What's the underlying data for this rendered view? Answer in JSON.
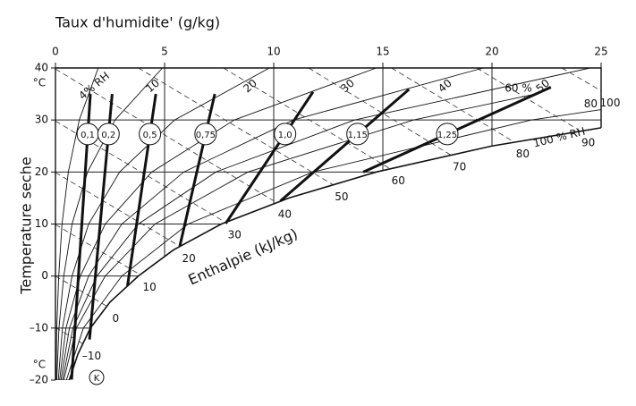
{
  "chart_data": {
    "type": "psychrometric",
    "xlabel": "Taux d'humidite' (g/kg)",
    "ylabel": "Temperature seche",
    "y_unit": "°C",
    "enthalpy_label": "Enthalpie (kJ/kg)",
    "point_label": "K",
    "xlim": [
      0,
      25
    ],
    "ylim": [
      -20,
      40
    ],
    "xticks": [
      0,
      5,
      10,
      15,
      20,
      25
    ],
    "yticks": [
      40,
      30,
      20,
      10,
      0,
      {
        "value": -10,
        "label": "–10"
      },
      {
        "value": -20,
        "label": "–20"
      }
    ],
    "grid": true,
    "rh_curves": [
      {
        "name": "4% RH",
        "x": [
          0.03,
          0.06,
          0.15,
          0.3,
          0.59,
          1.09,
          1.96
        ],
        "y": [
          -20,
          -10,
          0,
          10,
          20,
          30,
          40
        ]
      },
      {
        "name": "10",
        "x": [
          0.06,
          0.16,
          0.38,
          0.76,
          1.47,
          2.73,
          4.9
        ],
        "y": [
          -20,
          -10,
          0,
          10,
          20,
          30,
          40
        ]
      },
      {
        "name": "20",
        "x": [
          0.13,
          0.32,
          0.76,
          1.52,
          2.94,
          5.46,
          9.8
        ],
        "y": [
          -20,
          -10,
          0,
          10,
          20,
          30,
          40
        ]
      },
      {
        "name": "30",
        "x": [
          0.19,
          0.48,
          1.14,
          2.28,
          4.41,
          8.19,
          14.7
        ],
        "y": [
          -20,
          -10,
          0,
          10,
          20,
          30,
          40
        ]
      },
      {
        "name": "40",
        "x": [
          0.25,
          0.64,
          1.52,
          3.04,
          5.88,
          10.9,
          19.6
        ],
        "y": [
          -20,
          -10,
          0,
          10,
          20,
          30,
          40
        ]
      },
      {
        "name": "50",
        "x": [
          0.32,
          0.8,
          1.9,
          3.8,
          7.35,
          13.7,
          24.5
        ],
        "y": [
          -20,
          -10,
          0,
          10,
          20,
          30,
          40
        ]
      },
      {
        "name": "60 %",
        "x": [
          0.38,
          0.96,
          2.28,
          4.56,
          8.82,
          16.4,
          22
        ],
        "y": [
          -20,
          -10,
          0,
          10,
          20,
          30,
          35
        ]
      },
      {
        "name": "80",
        "x": [
          0.5,
          1.28,
          3.04,
          6.08,
          11.8,
          21.8,
          25
        ],
        "y": [
          -20,
          -10,
          0,
          10,
          20,
          30,
          32
        ]
      },
      {
        "name": "100 % RH",
        "x": [
          0.63,
          1.03,
          1.6,
          2.5,
          3.8,
          5.4,
          7.6,
          10.7,
          14.7,
          20,
          25
        ],
        "y": [
          -20,
          -15,
          -10,
          -5,
          0,
          5,
          10,
          15,
          20,
          25,
          28.5
        ]
      }
    ],
    "enthalpy_lines": [
      {
        "value": -10,
        "label": "–10",
        "x": [
          0,
          1.25
        ],
        "y": [
          -9.9,
          -13
        ]
      },
      {
        "value": 0,
        "x": [
          0,
          2.35
        ],
        "y": [
          0,
          -5.8
        ]
      },
      {
        "value": 10,
        "x": [
          0,
          3.9
        ],
        "y": [
          9.9,
          0.2
        ]
      },
      {
        "value": 20,
        "x": [
          0,
          5.7
        ],
        "y": [
          19.9,
          5.7
        ]
      },
      {
        "value": 30,
        "x": [
          0,
          7.8
        ],
        "y": [
          29.8,
          10.3
        ]
      },
      {
        "value": 40,
        "x": [
          0,
          10.1
        ],
        "y": [
          39.8,
          14.2
        ]
      },
      {
        "value": 50,
        "x": [
          3.8,
          12.7
        ],
        "y": [
          40,
          17.6
        ]
      },
      {
        "value": 60,
        "x": [
          7.7,
          15.3
        ],
        "y": [
          40,
          20.7
        ]
      },
      {
        "value": 70,
        "x": [
          11.6,
          18.1
        ],
        "y": [
          40,
          23.3
        ]
      },
      {
        "value": 80,
        "x": [
          15.4,
          21
        ],
        "y": [
          40,
          25.8
        ]
      },
      {
        "value": 90,
        "x": [
          19.3,
          24
        ],
        "y": [
          40,
          28
        ]
      },
      {
        "value": 100,
        "x": [
          23.2,
          25
        ],
        "y": [
          40,
          35.6
        ]
      }
    ],
    "scale_lines": [
      {
        "label": "0,1",
        "x": [
          0.74,
          1.6
        ],
        "y": [
          -19.9,
          35
        ]
      },
      {
        "label": "0,2",
        "x": [
          1.56,
          2.6
        ],
        "y": [
          -12.2,
          35
        ]
      },
      {
        "label": "0,5",
        "x": [
          3.3,
          4.6
        ],
        "y": [
          -1.9,
          35
        ]
      },
      {
        "label": "0,75",
        "x": [
          5.7,
          7.3
        ],
        "y": [
          5.8,
          35
        ]
      },
      {
        "label": "1,0",
        "x": [
          7.8,
          11.8
        ],
        "y": [
          10.1,
          35.4
        ]
      },
      {
        "label": "1,15",
        "x": [
          10.3,
          16.2
        ],
        "y": [
          14.4,
          35.9
        ]
      },
      {
        "label": "1,25",
        "x": [
          14.1,
          22.7
        ],
        "y": [
          20,
          36.3
        ]
      }
    ]
  }
}
